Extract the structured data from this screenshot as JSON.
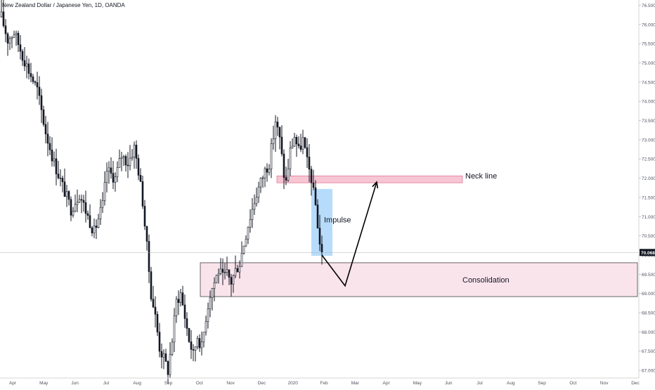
{
  "chart_data": {
    "type": "candlestick",
    "title": "New Zealand Dollar / Japanese Yen, 1D, OANDA",
    "price_scale": {
      "min": 66.8,
      "max": 76.6,
      "ticks": [
        "76.500",
        "76.000",
        "75.500",
        "75.000",
        "74.500",
        "74.000",
        "73.500",
        "73.000",
        "72.500",
        "72.000",
        "71.500",
        "71.000",
        "70.500",
        "70.000",
        "69.500",
        "69.000",
        "68.500",
        "68.000",
        "67.500",
        "67.000"
      ],
      "last_price": "70.068"
    },
    "time_axis": {
      "months": [
        "Apr",
        "May",
        "Jun",
        "Jul",
        "Aug",
        "Sep",
        "Oct",
        "Nov",
        "Dec",
        "2020",
        "Feb",
        "Mar",
        "Apr",
        "May",
        "Jun",
        "Jul",
        "Aug",
        "Sep",
        "Oct",
        "Nov",
        "Dec"
      ]
    },
    "price_path": [
      [
        0,
        76.2
      ],
      [
        3,
        75.6
      ],
      [
        6,
        75.8
      ],
      [
        10,
        75.2
      ],
      [
        13,
        74.8
      ],
      [
        17,
        74.3
      ],
      [
        21,
        73.2
      ],
      [
        25,
        72.4
      ],
      [
        29,
        71.8
      ],
      [
        33,
        71.2
      ],
      [
        37,
        71.6
      ],
      [
        41,
        71.0
      ],
      [
        44,
        70.6
      ],
      [
        48,
        71.3
      ],
      [
        50,
        72.2
      ],
      [
        54,
        72.0
      ],
      [
        57,
        72.6
      ],
      [
        60,
        72.4
      ],
      [
        63,
        72.8
      ],
      [
        65,
        72.2
      ],
      [
        67,
        71.4
      ],
      [
        69,
        70.2
      ],
      [
        71,
        69.0
      ],
      [
        73,
        68.4
      ],
      [
        75,
        67.6
      ],
      [
        77,
        67.3
      ],
      [
        79,
        67.0
      ],
      [
        81,
        67.8
      ],
      [
        83,
        68.8
      ],
      [
        85,
        69.0
      ],
      [
        87,
        68.4
      ],
      [
        89,
        67.8
      ],
      [
        91,
        67.4
      ],
      [
        93,
        67.9
      ],
      [
        95,
        67.6
      ],
      [
        97,
        68.4
      ],
      [
        99,
        69.0
      ],
      [
        101,
        69.3
      ],
      [
        103,
        69.6
      ],
      [
        105,
        69.4
      ],
      [
        107,
        69.5
      ],
      [
        109,
        69.3
      ],
      [
        111,
        69.6
      ],
      [
        113,
        69.8
      ],
      [
        115,
        70.3
      ],
      [
        117,
        70.8
      ],
      [
        119,
        71.2
      ],
      [
        121,
        71.6
      ],
      [
        123,
        71.9
      ],
      [
        125,
        72.2
      ],
      [
        127,
        72.4
      ],
      [
        129,
        73.1
      ],
      [
        130,
        73.5
      ],
      [
        132,
        73.0
      ],
      [
        134,
        72.1
      ],
      [
        135,
        71.9
      ],
      [
        137,
        72.7
      ],
      [
        139,
        73.1
      ],
      [
        141,
        72.7
      ],
      [
        143,
        73.0
      ],
      [
        145,
        72.4
      ],
      [
        147,
        72.0
      ],
      [
        148,
        71.6
      ],
      [
        149,
        71.3
      ],
      [
        150,
        70.8
      ],
      [
        151,
        70.3
      ],
      [
        152,
        70.068
      ]
    ],
    "annotations": [
      {
        "type": "zone",
        "label": "Neck line",
        "from": 71.88,
        "to": 72.06
      },
      {
        "type": "zone",
        "label": "Consolidation",
        "from": 68.92,
        "to": 69.8
      },
      {
        "type": "zone",
        "label": "Impulse",
        "from": 69.98,
        "to": 71.72
      },
      {
        "type": "arrow",
        "label": "",
        "points": [
          [
            152,
            70.0
          ],
          [
            163,
            69.2
          ],
          [
            178,
            71.9
          ]
        ]
      }
    ]
  }
}
